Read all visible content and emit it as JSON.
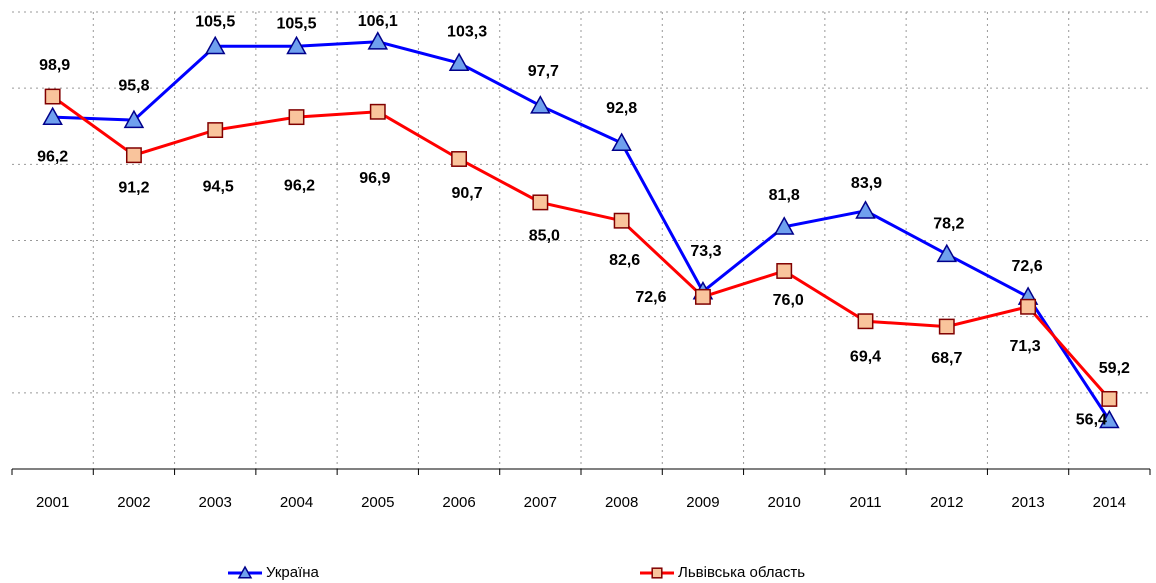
{
  "chart_data": {
    "type": "line",
    "categories": [
      "2001",
      "2002",
      "2003",
      "2004",
      "2005",
      "2006",
      "2007",
      "2008",
      "2009",
      "2010",
      "2011",
      "2012",
      "2013",
      "2014"
    ],
    "series": [
      {
        "name": "Україна",
        "color": "#0000ff",
        "marker_color": "#6fa0ee",
        "values": [
          96.2,
          95.8,
          105.5,
          105.5,
          106.1,
          103.3,
          97.7,
          92.8,
          73.3,
          81.8,
          83.9,
          78.2,
          72.6,
          56.4
        ],
        "value_labels": [
          "96,2",
          "95,8",
          "105,5",
          "105,5",
          "106,1",
          "103,3",
          "97,7",
          "92,8",
          "73,3",
          "81,8",
          "83,9",
          "78,2",
          "72,6",
          "56,4"
        ]
      },
      {
        "name": "Львівська область",
        "color": "#ff0000",
        "marker_color": "#f9c49c",
        "values": [
          98.9,
          91.2,
          94.5,
          96.2,
          96.9,
          90.7,
          85.0,
          82.6,
          72.6,
          76.0,
          69.4,
          68.7,
          71.3,
          59.2
        ],
        "value_labels": [
          "98,9",
          "91,2",
          "94,5",
          "96,2",
          "96,9",
          "90,7",
          "85,0",
          "82,6",
          "72,6",
          "76,0",
          "69,4",
          "68,7",
          "71,3",
          "59,2"
        ]
      }
    ],
    "ylim": [
      50,
      110
    ],
    "yticks": [
      50,
      60,
      70,
      80,
      90,
      100,
      110
    ],
    "grid": true
  }
}
